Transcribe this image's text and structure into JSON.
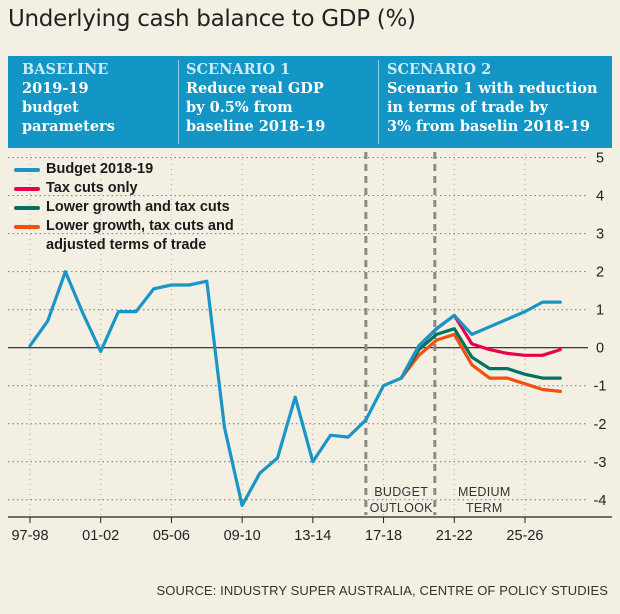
{
  "title": "Underlying cash balance to GDP (%)",
  "banner": {
    "color": "#1395c6",
    "scenarios": [
      {
        "heading": "BASELINE",
        "body": "2019-19\nbudget\nparameters"
      },
      {
        "heading": "SCENARIO 1",
        "body": "Reduce real GDP\nby 0.5% from\nbaseline 2018-19"
      },
      {
        "heading": "SCENARIO 2",
        "body": "Scenario 1 with reduction\nin terms of trade by\n3% from baselin 2018-19"
      }
    ]
  },
  "source": "SOURCE: INDUSTRY SUPER AUSTRALIA, CENTRE OF POLICY STUDIES",
  "chart_data": {
    "type": "line",
    "title": "Underlying cash balance to GDP (%)",
    "x_start_year": 1997,
    "x_end_year": 2028,
    "x_tick_labels": [
      {
        "year": 1997,
        "label": "97-98"
      },
      {
        "year": 2001,
        "label": "01-02"
      },
      {
        "year": 2005,
        "label": "05-06"
      },
      {
        "year": 2009,
        "label": "09-10"
      },
      {
        "year": 2013,
        "label": "13-14"
      },
      {
        "year": 2017,
        "label": "17-18"
      },
      {
        "year": 2021,
        "label": "21-22"
      },
      {
        "year": 2025,
        "label": "25-26"
      }
    ],
    "ylim": [
      -4.4,
      5.2
    ],
    "y_ticks": [
      5,
      4,
      3,
      2,
      1,
      0,
      -1,
      -2,
      -3,
      -4
    ],
    "zero_line": true,
    "divider_years": [
      2016,
      2019.9
    ],
    "region_labels": [
      {
        "text": "BUDGET\nOUTLOOK",
        "x_year": 2018,
        "y": -3.9
      },
      {
        "text": "MEDIUM\nTERM",
        "x_year": 2022.7,
        "y": -3.9
      }
    ],
    "series": [
      {
        "name": "Budget 2018-19",
        "color": "#1a96c6",
        "points": [
          [
            1997,
            0.05
          ],
          [
            1998,
            0.7
          ],
          [
            1999,
            2.0
          ],
          [
            2000,
            0.9
          ],
          [
            2001,
            -0.1
          ],
          [
            2002,
            0.95
          ],
          [
            2003,
            0.95
          ],
          [
            2004,
            1.55
          ],
          [
            2005,
            1.65
          ],
          [
            2006,
            1.65
          ],
          [
            2007,
            1.75
          ],
          [
            2008,
            -2.1
          ],
          [
            2009,
            -4.15
          ],
          [
            2010,
            -3.3
          ],
          [
            2011,
            -2.9
          ],
          [
            2012,
            -1.3
          ],
          [
            2013,
            -3.0
          ],
          [
            2014,
            -2.3
          ],
          [
            2015,
            -2.35
          ],
          [
            2016,
            -1.9
          ],
          [
            2017,
            -1.0
          ],
          [
            2018,
            -0.8
          ],
          [
            2019,
            0.05
          ],
          [
            2020,
            0.5
          ],
          [
            2021,
            0.85
          ],
          [
            2022,
            0.35
          ],
          [
            2023,
            0.55
          ],
          [
            2024,
            0.75
          ],
          [
            2025,
            0.95
          ],
          [
            2026,
            1.2
          ],
          [
            2027,
            1.2
          ]
        ]
      },
      {
        "name": "Tax cuts only",
        "color": "#e8004c",
        "points": [
          [
            2018,
            -0.8
          ],
          [
            2019,
            0.05
          ],
          [
            2020,
            0.5
          ],
          [
            2021,
            0.85
          ],
          [
            2022,
            0.1
          ],
          [
            2023,
            -0.05
          ],
          [
            2024,
            -0.15
          ],
          [
            2025,
            -0.2
          ],
          [
            2026,
            -0.2
          ],
          [
            2027,
            -0.05
          ]
        ]
      },
      {
        "name": "Lower growth and tax cuts",
        "color": "#047261",
        "points": [
          [
            2018,
            -0.8
          ],
          [
            2019,
            -0.05
          ],
          [
            2020,
            0.35
          ],
          [
            2021,
            0.5
          ],
          [
            2022,
            -0.25
          ],
          [
            2023,
            -0.55
          ],
          [
            2024,
            -0.55
          ],
          [
            2025,
            -0.7
          ],
          [
            2026,
            -0.8
          ],
          [
            2027,
            -0.8
          ]
        ]
      },
      {
        "name": "Lower growth, tax cuts and\nadjusted terms of trade",
        "color": "#f2500e",
        "points": [
          [
            2018,
            -0.8
          ],
          [
            2019,
            -0.2
          ],
          [
            2020,
            0.2
          ],
          [
            2021,
            0.35
          ],
          [
            2022,
            -0.45
          ],
          [
            2023,
            -0.8
          ],
          [
            2024,
            -0.8
          ],
          [
            2025,
            -0.95
          ],
          [
            2026,
            -1.1
          ],
          [
            2027,
            -1.15
          ]
        ]
      }
    ]
  }
}
